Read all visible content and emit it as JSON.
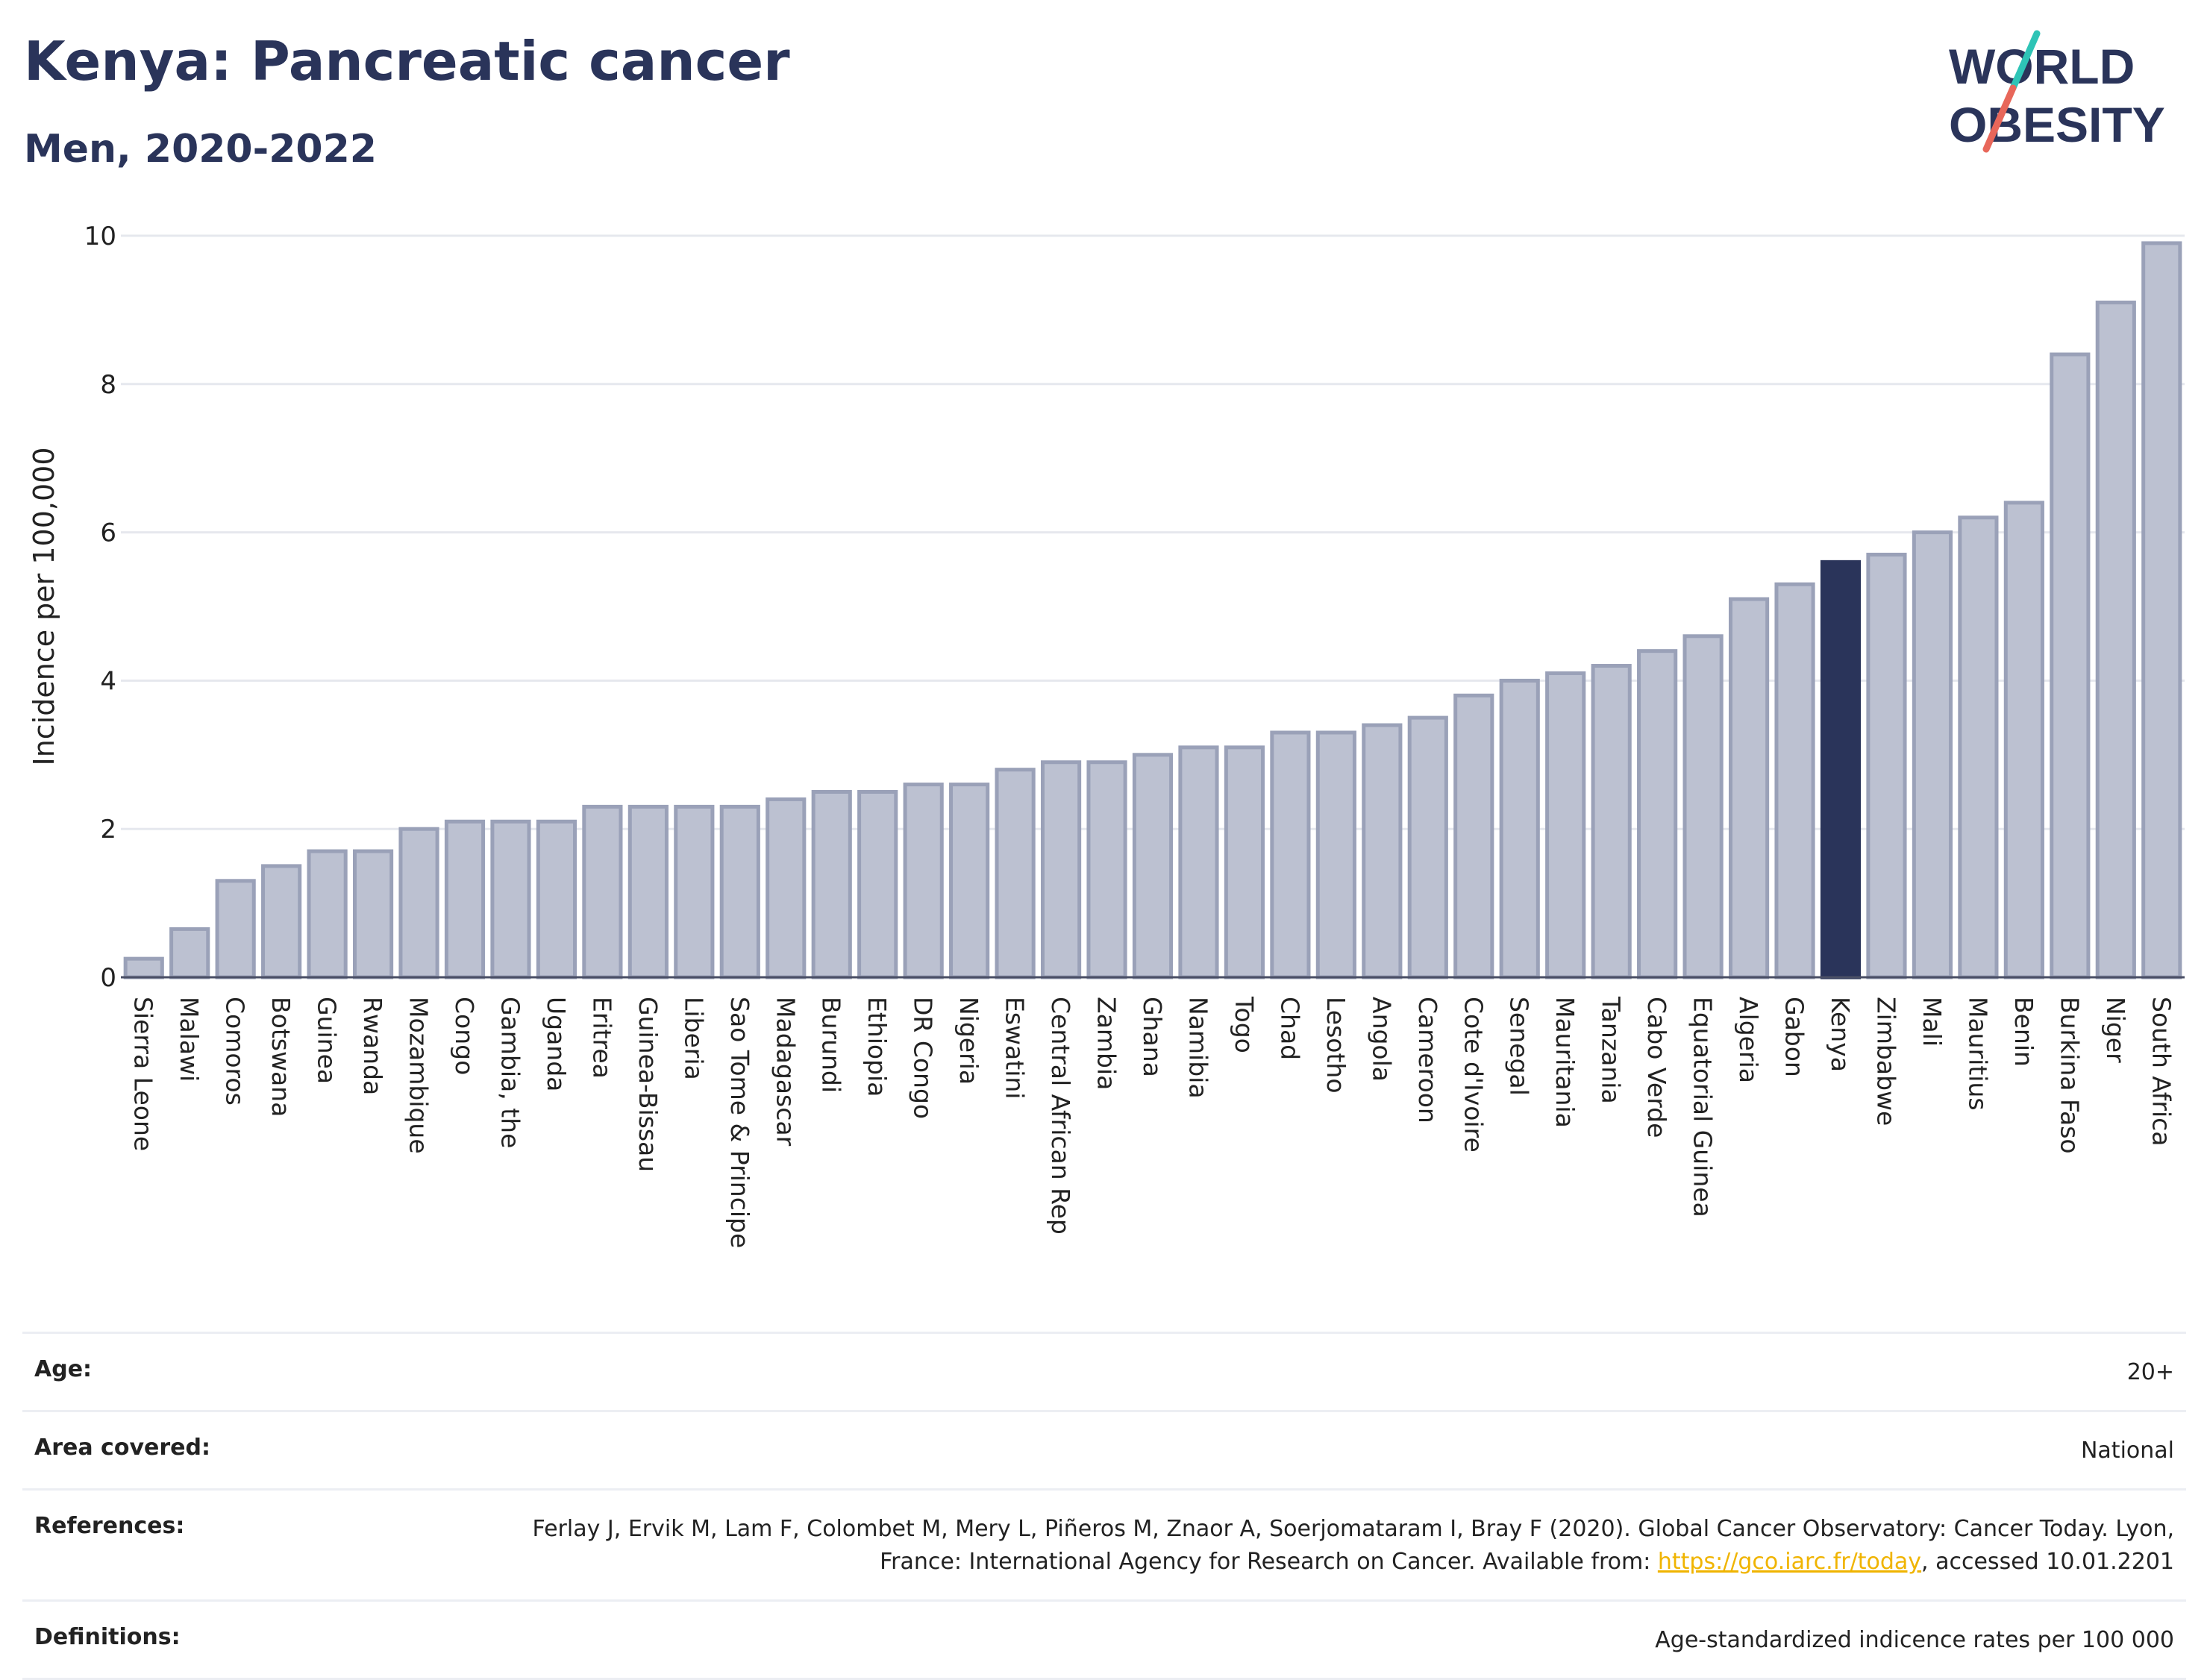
{
  "header": {
    "title": "Kenya: Pancreatic cancer",
    "subtitle": "Men, 2020-2022"
  },
  "logo": {
    "line1": "WORLD",
    "line2": "OBESITY",
    "colors": {
      "text": "#2a345a",
      "slash_top": "#2ec4b6",
      "slash_bottom": "#e8675a"
    }
  },
  "colors": {
    "bar_fill": "#bcc1d1",
    "bar_stroke": "#9aa1b8",
    "highlight": "#2a345a",
    "grid": "#e6e8ee",
    "baseline": "#4a4f66"
  },
  "chart_data": {
    "type": "bar",
    "ylabel": "Incidence per 100,000",
    "xlabel": "",
    "ylim": [
      0,
      10
    ],
    "yticks": [
      0,
      2,
      4,
      6,
      8,
      10
    ],
    "grid": true,
    "highlight": "Kenya",
    "categories": [
      "Sierra Leone",
      "Malawi",
      "Comoros",
      "Botswana",
      "Guinea",
      "Rwanda",
      "Mozambique",
      "Congo",
      "Gambia, the",
      "Uganda",
      "Eritrea",
      "Guinea-Bissau",
      "Liberia",
      "Sao Tome & Principe",
      "Madagascar",
      "Burundi",
      "Ethiopia",
      "DR Congo",
      "Nigeria",
      "Eswatini",
      "Central African Rep",
      "Zambia",
      "Ghana",
      "Namibia",
      "Togo",
      "Chad",
      "Lesotho",
      "Angola",
      "Cameroon",
      "Cote d'Ivoire",
      "Senegal",
      "Mauritania",
      "Tanzania",
      "Cabo Verde",
      "Equatorial Guinea",
      "Algeria",
      "Gabon",
      "Kenya",
      "Zimbabwe",
      "Mali",
      "Mauritius",
      "Benin",
      "Burkina Faso",
      "Niger",
      "South Africa"
    ],
    "values": [
      0.25,
      0.65,
      1.3,
      1.5,
      1.7,
      1.7,
      2.0,
      2.1,
      2.1,
      2.1,
      2.3,
      2.3,
      2.3,
      2.3,
      2.4,
      2.5,
      2.5,
      2.6,
      2.6,
      2.8,
      2.9,
      2.9,
      3.0,
      3.1,
      3.1,
      3.3,
      3.3,
      3.4,
      3.5,
      3.8,
      4.0,
      4.1,
      4.2,
      4.4,
      4.6,
      5.1,
      5.3,
      5.6,
      5.7,
      6.0,
      6.2,
      6.4,
      8.4,
      9.1,
      9.9
    ]
  },
  "meta": {
    "age_label": "Age:",
    "age_value": "20+",
    "area_label": "Area covered:",
    "area_value": "National",
    "references_label": "References:",
    "references_text_1": "Ferlay J, Ervik M, Lam F, Colombet M, Mery L, Piñeros M, Znaor A, Soerjomataram I, Bray F (2020). Global Cancer Observatory: Cancer Today. Lyon, France: International Agency for Research on Cancer. Available from: ",
    "references_link": "https://gco.iarc.fr/today",
    "references_text_2": ", accessed 10.01.2201",
    "definitions_label": "Definitions:",
    "definitions_value": "Age-standardized indicence rates per 100 000"
  }
}
